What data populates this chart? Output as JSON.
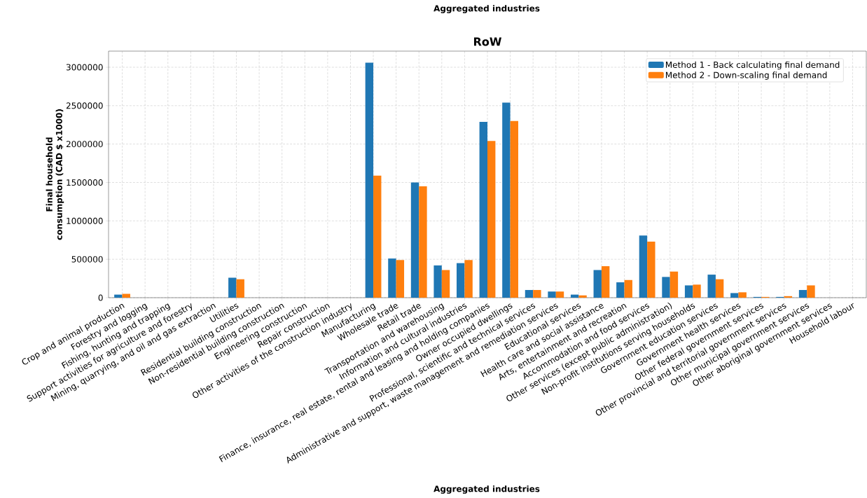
{
  "chart_data": {
    "type": "bar",
    "title": "RoW",
    "xlabel": "Aggregated industries",
    "ylabel": "Final household consumption (CAD $ x1000)",
    "annotations": [
      "Aggregated industries"
    ],
    "categories": [
      "Crop and animal production",
      "Forestry and logging",
      "Fishing, hunting and trapping",
      "Support activities for agriculture and forestry",
      "Mining, quarrying, and oil and gas extraction",
      "Utilities",
      "Residential building construction",
      "Non-residential building construction",
      "Engineering construction",
      "Repair construction",
      "Other activities of the construction industry",
      "Manufacturing",
      "Wholesale trade",
      "Retail trade",
      "Transportation and warehousing",
      "Information and cultural industries",
      "Finance, insurance, real estate, rental and leasing and holding companies",
      "Owner occupied dwellings",
      "Professional, scientific and technical services",
      "Administrative and support, waste management and remediation services",
      "Educational services",
      "Health care and social assistance",
      "Arts, entertainment and recreation",
      "Accommodation and food services",
      "Other services (except public administration)",
      "Non-profit institutions serving households",
      "Government education services",
      "Government health services",
      "Other federal government services",
      "Other provincial and territorial government services",
      "Other municipal government services",
      "Other aboriginal government services",
      "Household labour"
    ],
    "series": [
      {
        "name": "Method 1 - Back calculating final demand",
        "color": "#1f77b4",
        "values": [
          40000,
          0,
          0,
          0,
          0,
          260000,
          0,
          0,
          0,
          0,
          0,
          3060000,
          510000,
          1500000,
          420000,
          450000,
          2290000,
          2540000,
          100000,
          80000,
          40000,
          360000,
          200000,
          810000,
          270000,
          160000,
          300000,
          60000,
          10000,
          10000,
          100000,
          0,
          0
        ]
      },
      {
        "name": "Method 2 - Down-scaling final demand",
        "color": "#ff7f0e",
        "values": [
          50000,
          0,
          0,
          0,
          0,
          240000,
          0,
          0,
          0,
          0,
          0,
          1590000,
          490000,
          1450000,
          360000,
          490000,
          2040000,
          2300000,
          100000,
          80000,
          30000,
          410000,
          230000,
          730000,
          340000,
          170000,
          240000,
          70000,
          10000,
          20000,
          160000,
          0,
          0
        ]
      }
    ],
    "ylim": [
      0,
      3210000
    ],
    "yticks": [
      0,
      500000,
      1000000,
      1500000,
      2000000,
      2500000,
      3000000
    ],
    "grid": true,
    "legend": "top right"
  }
}
